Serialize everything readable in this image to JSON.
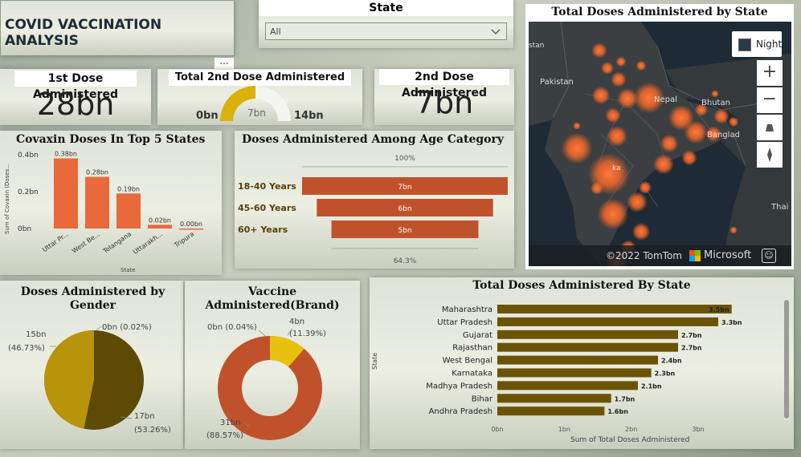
{
  "title": "COVID VACCINATION ANALYSIS",
  "more_label": "...",
  "state_filter": {
    "label": "State",
    "selected": "All"
  },
  "kpi_dose1": {
    "label": "1st Dose Administered",
    "value": "28bn"
  },
  "kpi_total2": {
    "label": "Total 2nd Dose Administered",
    "min": "0bn",
    "value": "7bn",
    "max": "14bn",
    "fraction": 0.5
  },
  "kpi_dose2": {
    "label": "2nd Dose Administered",
    "value": "7bn"
  },
  "map": {
    "title": "Total Doses Administered by State",
    "style_label": "Night",
    "labels": [
      "stan",
      "Pakistan",
      "Nepal",
      "Bhutan",
      "Bangladesh",
      "Thai",
      "ka"
    ],
    "attribution": "©2022 TomTom",
    "brand": "Microsoft"
  },
  "covaxin_chart": {
    "title": "Covaxin Doses In Top 5 States",
    "ylabel": "Sum of Covaxin (Doses...",
    "xlabel": "State",
    "yticks": [
      "0bn",
      "0.2bn",
      "0.4bn"
    ],
    "color": "#e8693a",
    "categories": [
      "Uttar Pr...",
      "West Be...",
      "Telangana",
      "Uttarakh...",
      "Tripura"
    ],
    "data_labels": [
      "0.38bn",
      "0.28bn",
      "0.19bn",
      "0.02bn",
      "0.00bn"
    ]
  },
  "age_chart": {
    "title": "Doses Administered Among Age Category",
    "top_label": "100%",
    "bottom_label": "64.3%",
    "color": "#c0522b",
    "categories": [
      "18-40 Years",
      "45-60 Years",
      "60+ Years"
    ],
    "data_labels": [
      "7bn",
      "6bn",
      "5bn"
    ]
  },
  "gender_chart": {
    "title": "Doses Administered by Gender",
    "labels": {
      "top_right": "0bn (0.02%)",
      "left_a": "15bn",
      "left_b": "(46.73%)",
      "right_a": "17bn",
      "right_b": "(53.26%)"
    },
    "colors": [
      "#5c4a05",
      "#b8940b"
    ]
  },
  "brand_chart": {
    "title": "Vaccine Administered(Brand)",
    "labels": {
      "top_left": "0bn (0.04%)",
      "top_right_a": "4bn",
      "top_right_b": "(11.39%)",
      "bottom_a": "31bn",
      "bottom_b": "(88.57%)"
    },
    "colors": [
      "#c0522b",
      "#e8c10f"
    ]
  },
  "state_bar_chart": {
    "title": "Total Doses Administered By State",
    "ylabel": "State",
    "xlabel": "Sum of Total Doses Administered",
    "xticks": [
      "0bn",
      "1bn",
      "2bn",
      "3bn"
    ],
    "color": "#6b5306",
    "categories": [
      "Maharashtra",
      "Uttar Pradesh",
      "Gujarat",
      "Rajasthan",
      "West Bengal",
      "Karnataka",
      "Madhya Pradesh",
      "Bihar",
      "Andhra Pradesh"
    ],
    "data_labels": [
      "3.5bn",
      "3.3bn",
      "2.7bn",
      "2.7bn",
      "2.4bn",
      "2.3bn",
      "2.1bn",
      "1.7bn",
      "1.6bn"
    ]
  },
  "chart_data": [
    {
      "type": "bar",
      "title": "Covaxin Doses In Top 5 States",
      "categories": [
        "Uttar Pr...",
        "West Be...",
        "Telangana",
        "Uttarakh...",
        "Tripura"
      ],
      "values": [
        0.38,
        0.28,
        0.19,
        0.02,
        0.0
      ],
      "ylim": [
        0,
        0.4
      ],
      "xlabel": "State",
      "ylabel": "Sum of Covaxin (Doses..."
    },
    {
      "type": "bar",
      "title": "Doses Administered Among Age Category",
      "categories": [
        "18-40 Years",
        "45-60 Years",
        "60+ Years"
      ],
      "values": [
        7,
        6,
        5
      ]
    },
    {
      "type": "pie",
      "title": "Doses Administered by Gender",
      "values": [
        17,
        15,
        0.02
      ],
      "percent": [
        53.26,
        46.73,
        0.02
      ]
    },
    {
      "type": "pie",
      "title": "Vaccine Administered(Brand)",
      "values": [
        31,
        4,
        0.04
      ],
      "percent": [
        88.57,
        11.39,
        0.04
      ]
    },
    {
      "type": "bar",
      "title": "Total Doses Administered By State",
      "categories": [
        "Maharashtra",
        "Uttar Pradesh",
        "Gujarat",
        "Rajasthan",
        "West Bengal",
        "Karnataka",
        "Madhya Pradesh",
        "Bihar",
        "Andhra Pradesh"
      ],
      "values": [
        3.5,
        3.3,
        2.7,
        2.7,
        2.4,
        2.3,
        2.1,
        1.7,
        1.6
      ],
      "xlim": [
        0,
        3.6
      ],
      "xlabel": "Sum of Total Doses Administered",
      "ylabel": "State"
    }
  ]
}
